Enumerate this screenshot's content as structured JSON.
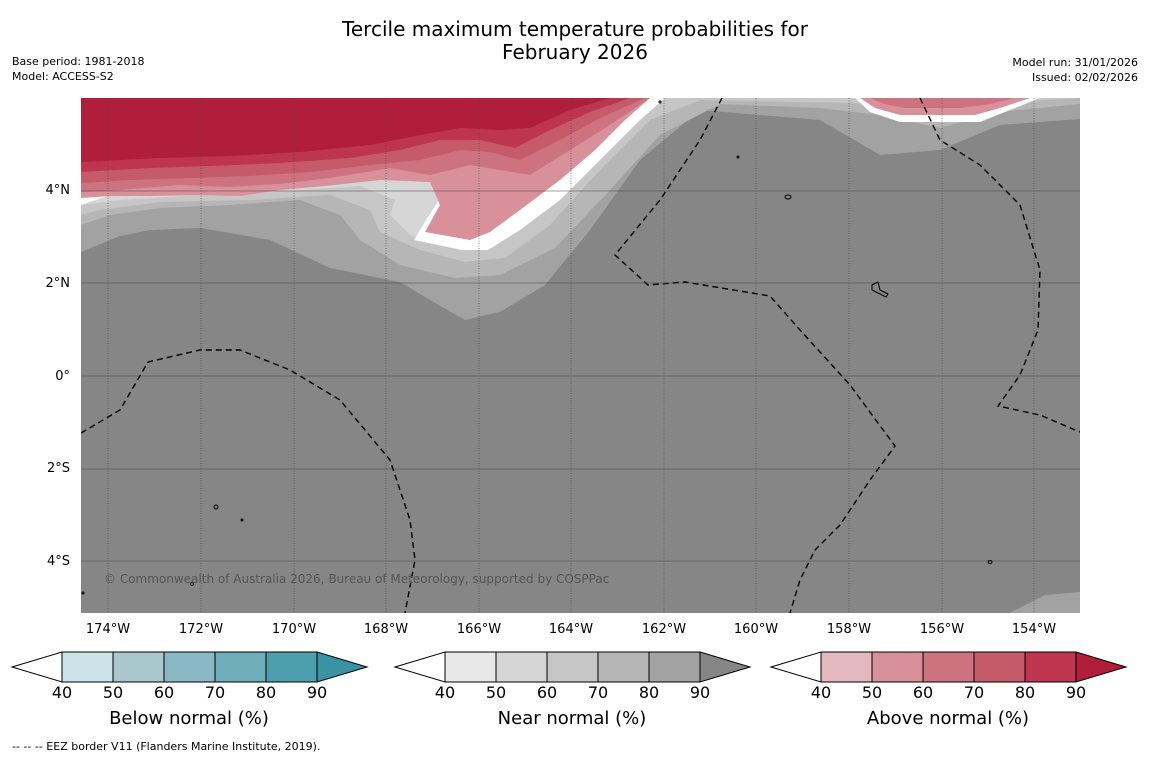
{
  "title_line1": "Tercile maximum temperature probabilities for",
  "title_line2": "February 2026",
  "base_period": "Base period: 1981-2018",
  "model": "Model: ACCESS-S2",
  "model_run": "Model run: 31/01/2026",
  "issued": "Issued: 02/02/2026",
  "lat_labels": [
    "4°N",
    "2°N",
    "0°",
    "2°S",
    "4°S"
  ],
  "lon_labels": [
    "174°W",
    "172°W",
    "170°W",
    "168°W",
    "166°W",
    "164°W",
    "162°W",
    "160°W",
    "158°W",
    "156°W",
    "154°W"
  ],
  "credit": "© Commonwealth of Australia 2026, Bureau of Meteorology, supported by COSPPac",
  "colorbars": [
    {
      "title": "Below normal (%)",
      "ticks": [
        "40",
        "50",
        "60",
        "70",
        "80",
        "90"
      ],
      "colors": [
        "#cce3e9",
        "#a9c8cd",
        "#8ab8c5",
        "#6eaebb",
        "#4d9fae",
        "#3a93a4"
      ]
    },
    {
      "title": "Near normal (%)",
      "ticks": [
        "40",
        "50",
        "60",
        "70",
        "80",
        "90"
      ],
      "colors": [
        "#e8e8e8",
        "#d6d6d6",
        "#c6c6c6",
        "#b6b6b6",
        "#a2a2a2",
        "#868686"
      ]
    },
    {
      "title": "Above normal (%)",
      "ticks": [
        "40",
        "50",
        "60",
        "70",
        "80",
        "90"
      ],
      "colors": [
        "#e3b9bf",
        "#d8909a",
        "#cd737f",
        "#c55a68",
        "#be3550",
        "#b01e3b"
      ]
    }
  ],
  "footer": "--  --  -- EEZ border V11 (Flanders Marine Institute, 2019)."
}
